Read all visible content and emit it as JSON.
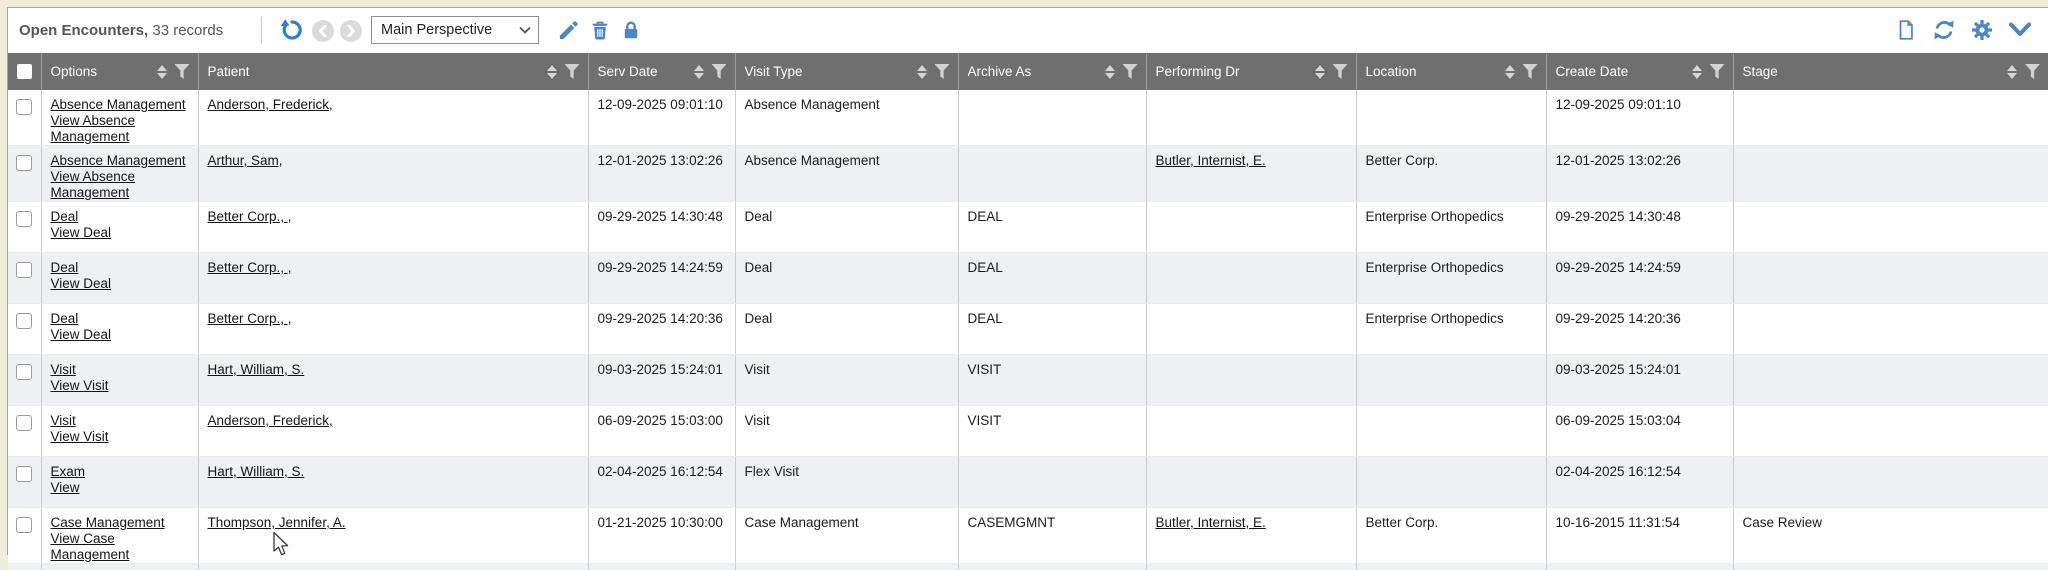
{
  "colors": {
    "accent_blue": "#4b86c7",
    "undo_blue": "#2e7cd6",
    "header_bg": "#6f6f6f",
    "alt_row_bg": "#eef0f4",
    "frame_bg": "#f0ebd9"
  },
  "toolbar": {
    "title": "Open Encounters,",
    "records_text": "33 records",
    "records_count": 33,
    "perspective_value": "Main Perspective",
    "left_icons": [
      "undo",
      "nav-back",
      "nav-forward",
      "edit-perspective",
      "delete-perspective",
      "lock-perspective"
    ],
    "right_icons": [
      "new-document",
      "refresh",
      "settings",
      "collapse"
    ]
  },
  "table": {
    "columns": [
      {
        "key": "select",
        "label": ""
      },
      {
        "key": "options",
        "label": "Options"
      },
      {
        "key": "patient",
        "label": "Patient"
      },
      {
        "key": "serv_date",
        "label": "Serv Date"
      },
      {
        "key": "visit_type",
        "label": "Visit Type"
      },
      {
        "key": "archive_as",
        "label": "Archive As"
      },
      {
        "key": "performing_dr",
        "label": "Performing Dr"
      },
      {
        "key": "location",
        "label": "Location"
      },
      {
        "key": "create_date",
        "label": "Create Date"
      },
      {
        "key": "stage",
        "label": "Stage"
      }
    ],
    "rows": [
      {
        "options": [
          "Absence Management",
          "View Absence Management"
        ],
        "patient": "Anderson, Frederick,",
        "serv_date": "12-09-2025 09:01:10",
        "visit_type": "Absence Management",
        "archive_as": "",
        "performing_dr": "",
        "location": "",
        "create_date": "12-09-2025 09:01:10",
        "stage": ""
      },
      {
        "options": [
          "Absence Management",
          "View Absence Management"
        ],
        "patient": "Arthur, Sam,",
        "serv_date": "12-01-2025 13:02:26",
        "visit_type": "Absence Management",
        "archive_as": "",
        "performing_dr": "Butler, Internist, E.",
        "location": "Better Corp.",
        "create_date": "12-01-2025 13:02:26",
        "stage": ""
      },
      {
        "options": [
          "Deal",
          "View Deal"
        ],
        "patient": "Better Corp., ,",
        "serv_date": "09-29-2025 14:30:48",
        "visit_type": "Deal",
        "archive_as": "DEAL",
        "performing_dr": "",
        "location": "Enterprise Orthopedics",
        "create_date": "09-29-2025 14:30:48",
        "stage": ""
      },
      {
        "options": [
          "Deal",
          "View Deal"
        ],
        "patient": "Better Corp., ,",
        "serv_date": "09-29-2025 14:24:59",
        "visit_type": "Deal",
        "archive_as": "DEAL",
        "performing_dr": "",
        "location": "Enterprise Orthopedics",
        "create_date": "09-29-2025 14:24:59",
        "stage": ""
      },
      {
        "options": [
          "Deal",
          "View Deal"
        ],
        "patient": "Better Corp., ,",
        "serv_date": "09-29-2025 14:20:36",
        "visit_type": "Deal",
        "archive_as": "DEAL",
        "performing_dr": "",
        "location": "Enterprise Orthopedics",
        "create_date": "09-29-2025 14:20:36",
        "stage": ""
      },
      {
        "options": [
          "Visit",
          "View Visit"
        ],
        "patient": "Hart, William, S.",
        "serv_date": "09-03-2025 15:24:01",
        "visit_type": "Visit",
        "archive_as": "VISIT",
        "performing_dr": "",
        "location": "",
        "create_date": "09-03-2025 15:24:01",
        "stage": ""
      },
      {
        "options": [
          "Visit",
          "View Visit"
        ],
        "patient": "Anderson, Frederick,",
        "serv_date": "06-09-2025 15:03:00",
        "visit_type": "Visit",
        "archive_as": "VISIT",
        "performing_dr": "",
        "location": "",
        "create_date": "06-09-2025 15:03:04",
        "stage": ""
      },
      {
        "options": [
          "Exam",
          "View"
        ],
        "patient": "Hart, William, S.",
        "serv_date": "02-04-2025 16:12:54",
        "visit_type": "Flex Visit",
        "archive_as": "",
        "performing_dr": "",
        "location": "",
        "create_date": "02-04-2025 16:12:54",
        "stage": ""
      },
      {
        "options": [
          "Case Management",
          "View Case Management"
        ],
        "patient": "Thompson, Jennifer, A.",
        "serv_date": "01-21-2025 10:30:00",
        "visit_type": "Case Management",
        "archive_as": "CASEMGMNT",
        "performing_dr": "Butler, Internist, E.",
        "location": "Better Corp.",
        "create_date": "10-16-2015 11:31:54",
        "stage": "Case Review"
      }
    ]
  }
}
